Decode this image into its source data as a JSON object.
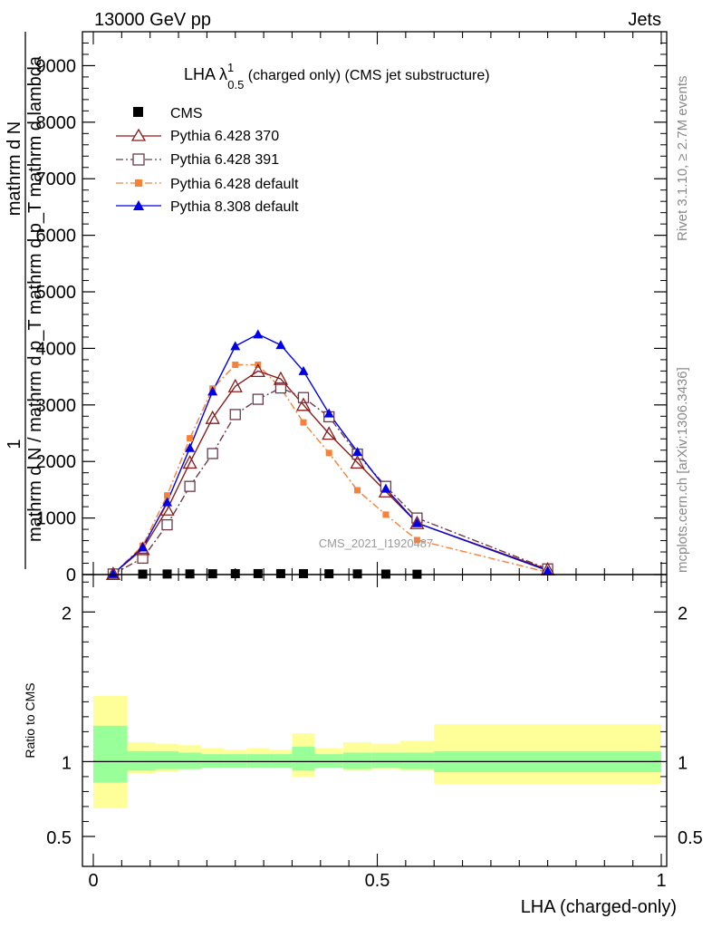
{
  "header": {
    "left": "13000 GeV pp",
    "right": "Jets"
  },
  "rivet_label": "Rivet 3.1.10, ≥ 2.7M events",
  "mcplots_label": "mcplots.cern.ch [arXiv:1306.3436]",
  "watermark": "CMS_2021_I1920487",
  "colors": {
    "cms": "#000000",
    "p370": "#8b1a1a",
    "p391": "#6b3a4a",
    "p6def": "#f5813a",
    "p8def": "#0000e6",
    "band_inner": "#99ff99",
    "band_outer": "#ffff99"
  },
  "chart_data": [
    {
      "type": "line",
      "title": "LHA λ^1_0.5 (charged only) (CMS jet substructure)",
      "title_parts": {
        "main": "LHA λ",
        "sup": "1",
        "sub": "0.5",
        "rest": " (charged only) (CMS jet substructure)"
      },
      "ylabel_parts": {
        "one": "1",
        "num": "mathrm d N",
        "den": "mathrm d N / mathrm d p_T mathrm d p_T mathrm d lambda"
      },
      "xlim": [
        0,
        1
      ],
      "ylim": [
        0,
        9600
      ],
      "yticks": [
        0,
        1000,
        2000,
        3000,
        4000,
        5000,
        6000,
        7000,
        8000,
        9000
      ],
      "ytick_labels": [
        "0",
        "1000",
        "2000",
        "3000",
        "4000",
        "5000",
        "6000",
        "7000",
        "8000",
        "9000"
      ],
      "series": [
        {
          "name": "CMS",
          "marker": "square-filled",
          "x": [
            0.035,
            0.087,
            0.13,
            0.17,
            0.21,
            0.25,
            0.29,
            0.33,
            0.37,
            0.415,
            0.465,
            0.515,
            0.57
          ],
          "y": [
            2,
            8,
            10,
            12,
            14,
            16,
            17,
            17,
            16,
            14,
            12,
            9,
            6
          ]
        },
        {
          "name": "Pythia 6.428 370",
          "marker": "triangle-open",
          "dash": "solid",
          "x": [
            0.035,
            0.087,
            0.13,
            0.17,
            0.21,
            0.25,
            0.29,
            0.33,
            0.37,
            0.415,
            0.465,
            0.515,
            0.57,
            0.8
          ],
          "y": [
            10,
            450,
            1150,
            1980,
            2770,
            3330,
            3600,
            3460,
            3000,
            2490,
            1980,
            1470,
            910,
            90
          ]
        },
        {
          "name": "Pythia 6.428 391",
          "marker": "square-open",
          "dash": "dashdot",
          "x": [
            0.035,
            0.087,
            0.13,
            0.17,
            0.21,
            0.25,
            0.29,
            0.33,
            0.37,
            0.415,
            0.465,
            0.515,
            0.57,
            0.8
          ],
          "y": [
            10,
            290,
            880,
            1560,
            2140,
            2830,
            3100,
            3300,
            3130,
            2790,
            2130,
            1560,
            1000,
            100
          ]
        },
        {
          "name": "Pythia 6.428 default",
          "marker": "square-filled",
          "dash": "dashdot",
          "x": [
            0.035,
            0.087,
            0.13,
            0.17,
            0.21,
            0.25,
            0.29,
            0.33,
            0.37,
            0.415,
            0.465,
            0.515,
            0.57,
            0.8
          ],
          "y": [
            10,
            510,
            1400,
            2410,
            3290,
            3710,
            3710,
            3300,
            2690,
            2150,
            1490,
            1060,
            610,
            40
          ]
        },
        {
          "name": "Pythia 8.308 default",
          "marker": "triangle-filled",
          "dash": "solid",
          "x": [
            0.035,
            0.087,
            0.13,
            0.17,
            0.21,
            0.25,
            0.29,
            0.33,
            0.37,
            0.415,
            0.465,
            0.515,
            0.57,
            0.8
          ],
          "y": [
            10,
            480,
            1280,
            2240,
            3240,
            4040,
            4250,
            4060,
            3600,
            2850,
            2170,
            1520,
            910,
            70
          ]
        }
      ]
    },
    {
      "type": "area",
      "ylabel": "Ratio to CMS",
      "xlabel": "LHA (charged-only)",
      "xlim": [
        0,
        1
      ],
      "ylim": [
        0.3,
        2.25
      ],
      "yticks": [
        0.5,
        1,
        2
      ],
      "ytick_labels": [
        "0.5",
        "1",
        "2"
      ],
      "xticks": [
        0,
        0.5,
        1
      ],
      "xtick_labels": [
        "0",
        "0.5",
        "1"
      ],
      "bin_edges": [
        0.0,
        0.06,
        0.11,
        0.15,
        0.19,
        0.23,
        0.27,
        0.31,
        0.35,
        0.39,
        0.44,
        0.49,
        0.54,
        0.6,
        1.0
      ],
      "inner_band": [
        [
          0.86,
          1.24
        ],
        [
          0.94,
          1.07
        ],
        [
          0.95,
          1.07
        ],
        [
          0.95,
          1.06
        ],
        [
          0.96,
          1.05
        ],
        [
          0.96,
          1.05
        ],
        [
          0.96,
          1.05
        ],
        [
          0.96,
          1.05
        ],
        [
          0.94,
          1.1
        ],
        [
          0.96,
          1.05
        ],
        [
          0.95,
          1.06
        ],
        [
          0.96,
          1.06
        ],
        [
          0.95,
          1.06
        ],
        [
          0.93,
          1.07
        ]
      ],
      "outer_band": [
        [
          0.69,
          1.44
        ],
        [
          0.92,
          1.13
        ],
        [
          0.93,
          1.12
        ],
        [
          0.95,
          1.11
        ],
        [
          0.96,
          1.09
        ],
        [
          0.96,
          1.08
        ],
        [
          0.96,
          1.09
        ],
        [
          0.96,
          1.08
        ],
        [
          0.9,
          1.19
        ],
        [
          0.96,
          1.09
        ],
        [
          0.94,
          1.13
        ],
        [
          0.95,
          1.12
        ],
        [
          0.94,
          1.14
        ],
        [
          0.85,
          1.25
        ]
      ],
      "reference": 1
    }
  ]
}
